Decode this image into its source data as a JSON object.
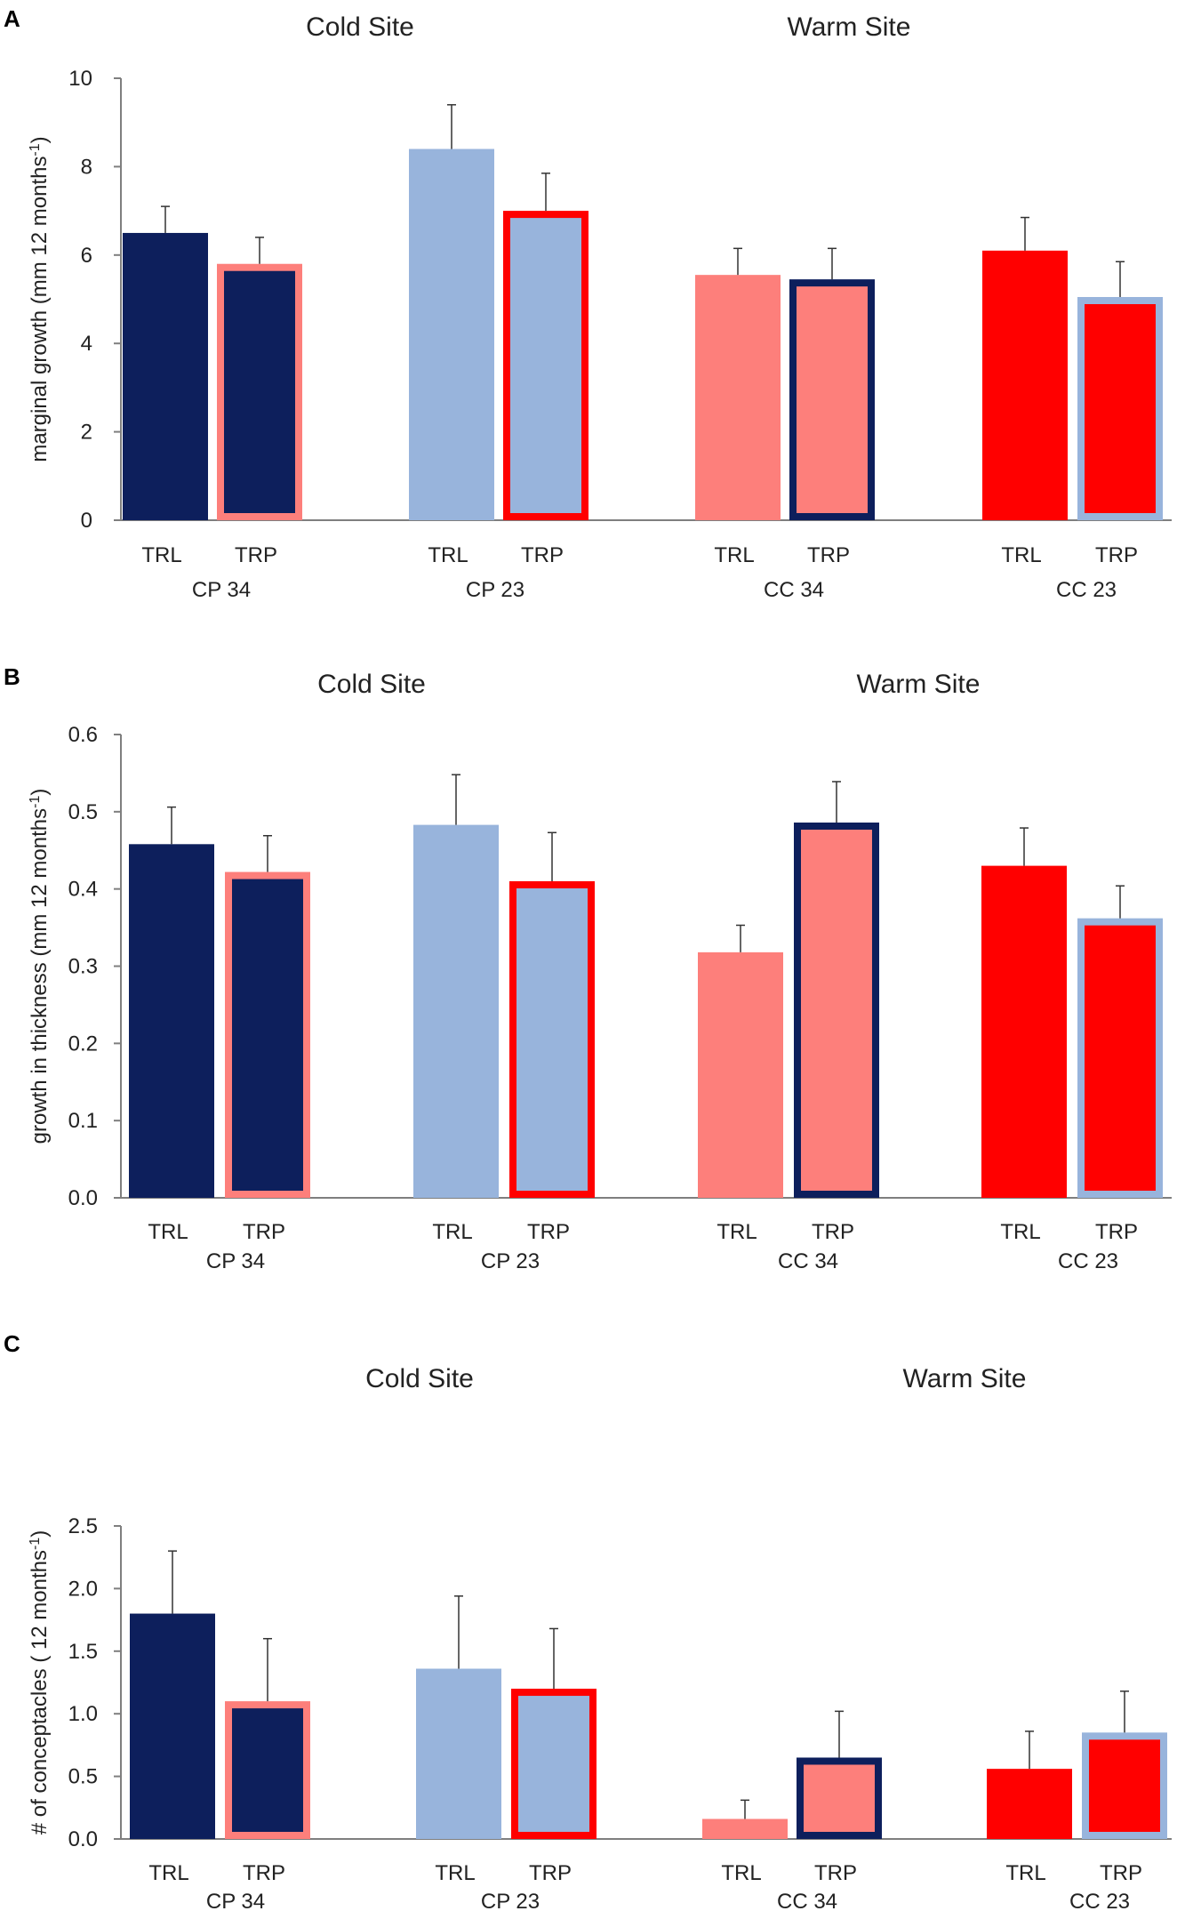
{
  "colors": {
    "navy": "#0d1f5c",
    "light_blue": "#98b4dc",
    "salmon": "#fd7f7b",
    "red": "#ff0000",
    "axis": "#7f7f7f",
    "error_bar": "#333333"
  },
  "chart_data": [
    {
      "panel": "A",
      "type": "bar",
      "ylabel": "marginal growth (mm 12 months",
      "ylabel_sup": "-1",
      "ylabel_end": ")",
      "ylim": [
        0,
        10
      ],
      "yticks": [
        "0",
        "2",
        "4",
        "6",
        "8",
        "10"
      ],
      "sites": [
        "Cold Site",
        "Warm Site"
      ],
      "groups": [
        {
          "name": "CP 34",
          "bars": [
            {
              "label": "TRL",
              "value": 6.5,
              "error": 0.6,
              "fill": "navy",
              "outline": "navy"
            },
            {
              "label": "TRP",
              "value": 5.8,
              "error": 0.6,
              "fill": "navy",
              "outline": "salmon"
            }
          ]
        },
        {
          "name": "CP 23",
          "bars": [
            {
              "label": "TRL",
              "value": 8.4,
              "error": 1.0,
              "fill": "light_blue",
              "outline": "light_blue"
            },
            {
              "label": "TRP",
              "value": 7.0,
              "error": 0.85,
              "fill": "light_blue",
              "outline": "red"
            }
          ]
        },
        {
          "name": "CC 34",
          "bars": [
            {
              "label": "TRL",
              "value": 5.55,
              "error": 0.6,
              "fill": "salmon",
              "outline": "salmon"
            },
            {
              "label": "TRP",
              "value": 5.45,
              "error": 0.7,
              "fill": "salmon",
              "outline": "navy"
            }
          ]
        },
        {
          "name": "CC 23",
          "bars": [
            {
              "label": "TRL",
              "value": 6.1,
              "error": 0.75,
              "fill": "red",
              "outline": "red"
            },
            {
              "label": "TRP",
              "value": 5.05,
              "error": 0.8,
              "fill": "red",
              "outline": "light_blue"
            }
          ]
        }
      ]
    },
    {
      "panel": "B",
      "type": "bar",
      "ylabel": "growth in thickness (mm 12 months",
      "ylabel_sup": "-1",
      "ylabel_end": ")",
      "ylim": [
        0,
        0.6
      ],
      "yticks": [
        "0.0",
        "0.1",
        "0.2",
        "0.3",
        "0.4",
        "0.5",
        "0.6"
      ],
      "sites": [
        "Cold Site",
        "Warm Site"
      ],
      "groups": [
        {
          "name": "CP 34",
          "bars": [
            {
              "label": "TRL",
              "value": 0.458,
              "error": 0.048,
              "fill": "navy",
              "outline": "navy"
            },
            {
              "label": "TRP",
              "value": 0.422,
              "error": 0.047,
              "fill": "navy",
              "outline": "salmon"
            }
          ]
        },
        {
          "name": "CP 23",
          "bars": [
            {
              "label": "TRL",
              "value": 0.483,
              "error": 0.065,
              "fill": "light_blue",
              "outline": "light_blue"
            },
            {
              "label": "TRP",
              "value": 0.41,
              "error": 0.063,
              "fill": "light_blue",
              "outline": "red"
            }
          ]
        },
        {
          "name": "CC 34",
          "bars": [
            {
              "label": "TRL",
              "value": 0.318,
              "error": 0.035,
              "fill": "salmon",
              "outline": "salmon"
            },
            {
              "label": "TRP",
              "value": 0.486,
              "error": 0.053,
              "fill": "salmon",
              "outline": "navy"
            }
          ]
        },
        {
          "name": "CC 23",
          "bars": [
            {
              "label": "TRL",
              "value": 0.43,
              "error": 0.049,
              "fill": "red",
              "outline": "red"
            },
            {
              "label": "TRP",
              "value": 0.362,
              "error": 0.042,
              "fill": "red",
              "outline": "light_blue"
            }
          ]
        }
      ]
    },
    {
      "panel": "C",
      "type": "bar",
      "ylabel": "# of conceptacles ( 12 months",
      "ylabel_sup": "-1",
      "ylabel_end": ")",
      "ylim": [
        0,
        2.5
      ],
      "yticks": [
        "0.0",
        "0.5",
        "1.0",
        "1.5",
        "2.0",
        "2.5"
      ],
      "sites": [
        "Cold Site",
        "Warm Site"
      ],
      "groups": [
        {
          "name": "CP 34",
          "bars": [
            {
              "label": "TRL",
              "value": 1.8,
              "error": 0.5,
              "fill": "navy",
              "outline": "navy"
            },
            {
              "label": "TRP",
              "value": 1.1,
              "error": 0.5,
              "fill": "navy",
              "outline": "salmon"
            }
          ]
        },
        {
          "name": "CP 23",
          "bars": [
            {
              "label": "TRL",
              "value": 1.36,
              "error": 0.58,
              "fill": "light_blue",
              "outline": "light_blue"
            },
            {
              "label": "TRP",
              "value": 1.2,
              "error": 0.48,
              "fill": "light_blue",
              "outline": "red"
            }
          ]
        },
        {
          "name": "CC 34",
          "bars": [
            {
              "label": "TRL",
              "value": 0.16,
              "error": 0.15,
              "fill": "salmon",
              "outline": "salmon"
            },
            {
              "label": "TRP",
              "value": 0.65,
              "error": 0.37,
              "fill": "salmon",
              "outline": "navy"
            }
          ]
        },
        {
          "name": "CC 23",
          "bars": [
            {
              "label": "TRL",
              "value": 0.56,
              "error": 0.3,
              "fill": "red",
              "outline": "red"
            },
            {
              "label": "TRP",
              "value": 0.85,
              "error": 0.33,
              "fill": "red",
              "outline": "light_blue"
            }
          ]
        }
      ]
    }
  ]
}
